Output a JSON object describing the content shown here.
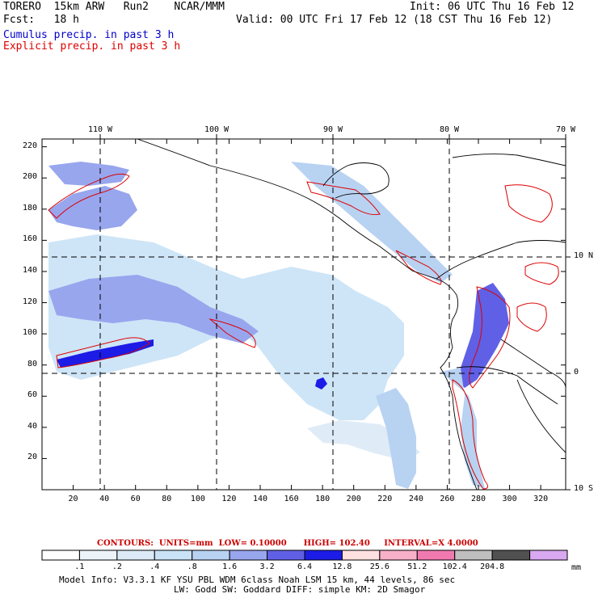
{
  "header": {
    "model_line": "TORERO  15km ARW   Run2    NCAR/MMM",
    "fcst_line": "Fcst:   18 h",
    "init_line": "Init: 06 UTC Thu 16 Feb 12",
    "valid_line": "Valid: 00 UTC Fri 17 Feb 12 (18 CST Thu 16 Feb 12)",
    "field1": "Cumulus precip. in past 3 h",
    "field2": "Explicit precip. in past 3 h",
    "field1_color": "#0000cc",
    "field2_color": "#dd0000"
  },
  "map": {
    "lon_labels": [
      "110 W",
      "100 W",
      "90 W",
      "80 W",
      "70 W"
    ],
    "lat_labels": [
      "10 N",
      "0",
      "10 S"
    ],
    "y_ticks": [
      "20",
      "40",
      "60",
      "80",
      "100",
      "120",
      "140",
      "160",
      "180",
      "200",
      "220"
    ],
    "x_ticks": [
      "20",
      "40",
      "60",
      "80",
      "100",
      "120",
      "140",
      "160",
      "180",
      "200",
      "220",
      "240",
      "260",
      "280",
      "300",
      "320"
    ]
  },
  "contour_info": {
    "contours": "CONTOURS:",
    "units": "UNITS=mm",
    "low": "LOW= 0.10000",
    "high": "HIGH= 102.40",
    "interval": "INTERVAL=X  4.0000",
    "color": "#cc0000"
  },
  "colorbar": {
    "labels": [
      ".1",
      ".2",
      ".4",
      ".8",
      "1.6",
      "3.2",
      "6.4",
      "12.8",
      "25.6",
      "51.2",
      "102.4",
      "204.8"
    ],
    "unit": "mm",
    "colors": [
      "#ffffff",
      "#ecf4fa",
      "#dbeaf6",
      "#c9e2f6",
      "#b8d2f2",
      "#98a6ee",
      "#6060e6",
      "#1c1ce6",
      "#ffe0e0",
      "#f8b0c8",
      "#f07ab0",
      "#bfbfbf",
      "#505050",
      "#d8a8f0"
    ]
  },
  "footer": {
    "line1": "Model Info: V3.3.1    KF      YSU PBL  WDM 6class  Noah LSM  15 km,   44 levels,   86 sec",
    "line2": "LW: Godd SW: Goddard DIFF: simple KM: 2D Smagor"
  }
}
